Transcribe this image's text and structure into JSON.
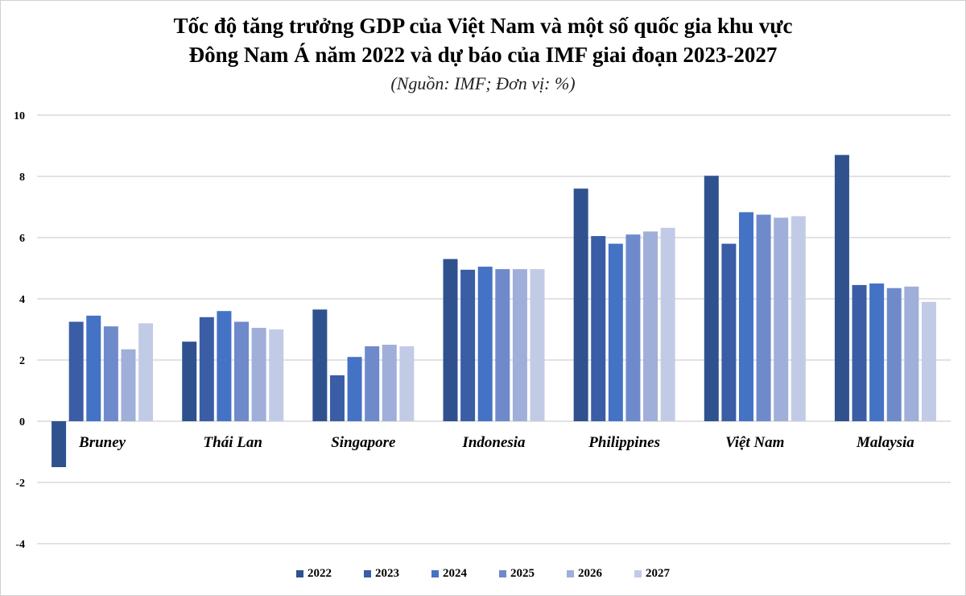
{
  "chart_data": {
    "type": "bar",
    "title": "Tốc độ tăng trưởng GDP của Việt Nam và một số quốc gia khu vực",
    "title_line2": "Đông Nam Á năm 2022 và dự báo của IMF giai đoạn 2023-2027",
    "subtitle": "(Nguồn: IMF; Đơn vị: %)",
    "categories": [
      "Bruney",
      "Thái Lan",
      "Singapore",
      "Indonesia",
      "Philippines",
      "Việt Nam",
      "Malaysia"
    ],
    "yticks": [
      "10",
      "8",
      "6",
      "4",
      "2",
      "0",
      "-2",
      "-4"
    ],
    "ylim": [
      -4,
      10
    ],
    "grid": true,
    "legend_position": "bottom",
    "series": [
      {
        "name": "2022",
        "color": "#2F528F",
        "values": [
          -1.5,
          2.6,
          3.65,
          5.3,
          7.6,
          8.02,
          8.7
        ]
      },
      {
        "name": "2023",
        "color": "#3A5DA5",
        "values": [
          3.25,
          3.4,
          1.5,
          4.95,
          6.05,
          5.8,
          4.45
        ]
      },
      {
        "name": "2024",
        "color": "#4472C4",
        "values": [
          3.45,
          3.6,
          2.1,
          5.05,
          5.8,
          6.83,
          4.5
        ]
      },
      {
        "name": "2025",
        "color": "#6F8ACB",
        "values": [
          3.1,
          3.25,
          2.45,
          4.97,
          6.1,
          6.75,
          4.35
        ]
      },
      {
        "name": "2026",
        "color": "#9FAFD9",
        "values": [
          2.35,
          3.05,
          2.5,
          4.97,
          6.2,
          6.65,
          4.4
        ]
      },
      {
        "name": "2027",
        "color": "#C2CBE6",
        "values": [
          3.2,
          3.0,
          2.45,
          4.97,
          6.32,
          6.7,
          3.9
        ]
      }
    ]
  }
}
